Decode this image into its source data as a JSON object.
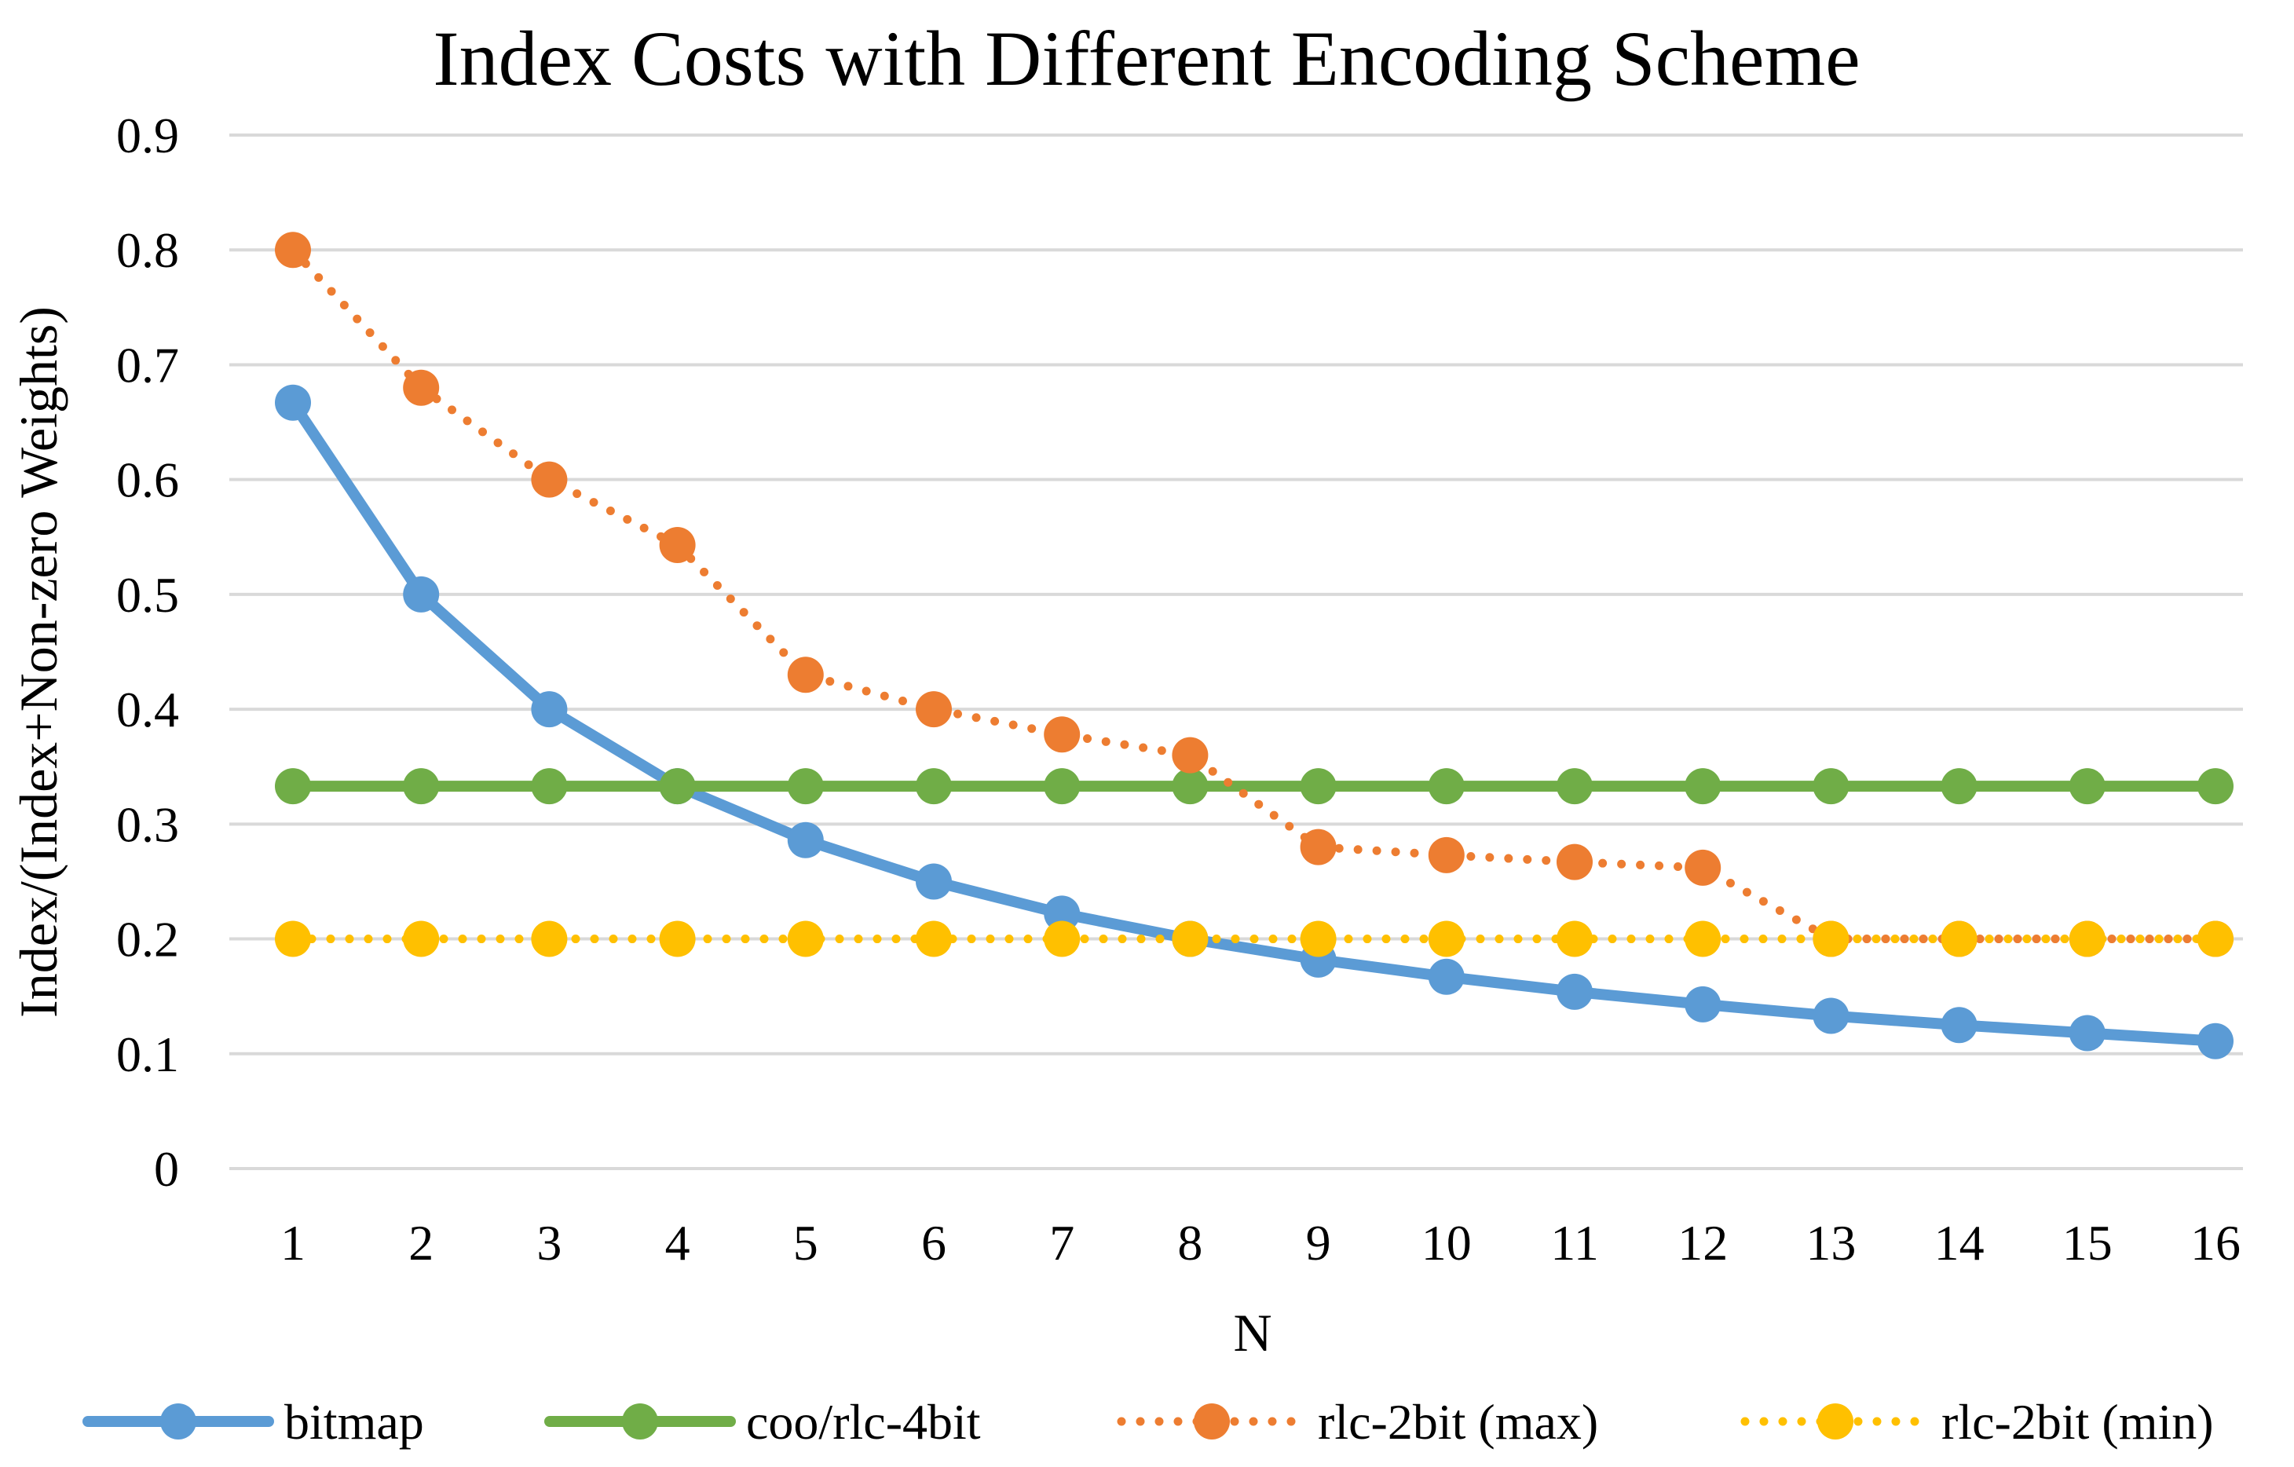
{
  "chart_data": {
    "type": "line",
    "title": "Index Costs with Different Encoding Scheme",
    "xlabel": "N",
    "ylabel": "Index/(Index+Non-zero Weights)",
    "categories": [
      "1",
      "2",
      "3",
      "4",
      "5",
      "6",
      "7",
      "8",
      "9",
      "10",
      "11",
      "12",
      "13",
      "14",
      "15",
      "16"
    ],
    "ylim": [
      0,
      0.9
    ],
    "yticks": [
      0,
      0.1,
      0.2,
      0.3,
      0.4,
      0.5,
      0.6,
      0.7,
      0.8,
      0.9
    ],
    "ytick_labels": [
      "0",
      "0.1",
      "0.2",
      "0.3",
      "0.4",
      "0.5",
      "0.6",
      "0.7",
      "0.8",
      "0.9"
    ],
    "grid": "horizontal",
    "legend_position": "bottom",
    "series": [
      {
        "name": "bitmap",
        "color": "#5B9BD5",
        "style": "solid",
        "values": [
          0.667,
          0.5,
          0.4,
          0.333,
          0.286,
          0.25,
          0.222,
          0.2,
          0.182,
          0.167,
          0.154,
          0.143,
          0.133,
          0.125,
          0.118,
          0.111
        ]
      },
      {
        "name": "coo/rlc-4bit",
        "color": "#70AD47",
        "style": "solid",
        "values": [
          0.333,
          0.333,
          0.333,
          0.333,
          0.333,
          0.333,
          0.333,
          0.333,
          0.333,
          0.333,
          0.333,
          0.333,
          0.333,
          0.333,
          0.333,
          0.333
        ]
      },
      {
        "name": "rlc-2bit (max)",
        "color": "#ED7D31",
        "style": "dotted",
        "values": [
          0.8,
          0.68,
          0.6,
          0.543,
          0.43,
          0.4,
          0.378,
          0.36,
          0.28,
          0.273,
          0.267,
          0.262,
          0.2,
          0.2,
          0.2,
          0.2
        ]
      },
      {
        "name": "rlc-2bit (min)",
        "color": "#FFC000",
        "style": "dotted",
        "values": [
          0.2,
          0.2,
          0.2,
          0.2,
          0.2,
          0.2,
          0.2,
          0.2,
          0.2,
          0.2,
          0.2,
          0.2,
          0.2,
          0.2,
          0.2,
          0.2
        ]
      }
    ]
  }
}
